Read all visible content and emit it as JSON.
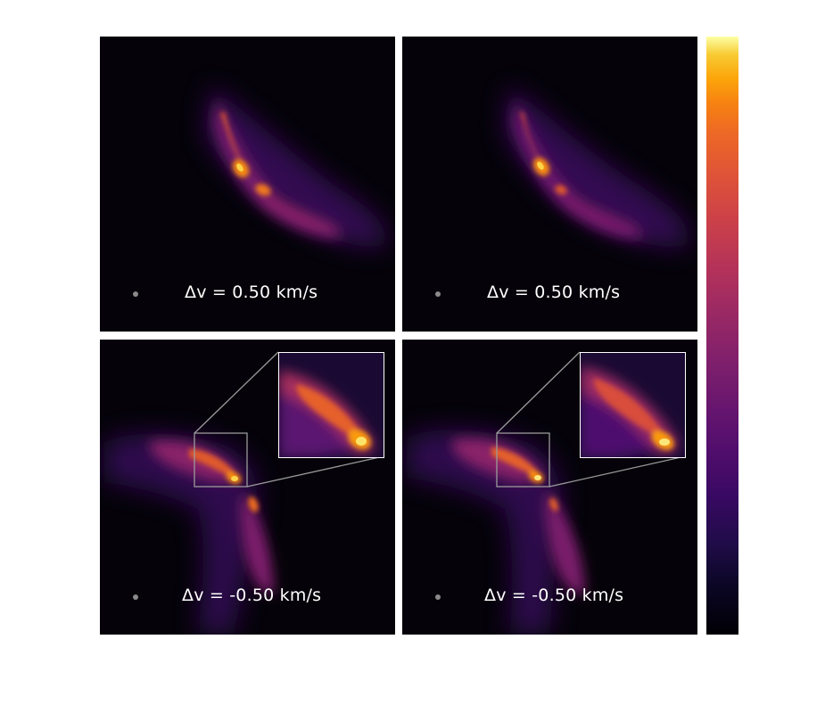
{
  "panels": [
    {
      "label": "Δv = 0.50 km/s"
    },
    {
      "label": "Δv = 0.50 km/s"
    },
    {
      "label": "Δv = -0.50 km/s"
    },
    {
      "label": "Δv = -0.50 km/s"
    }
  ],
  "colormap": "inferno",
  "colors": {
    "background": "#050309",
    "beam": "#8a8a8a",
    "zoom_box": "#9a9a9a",
    "inset_border": "#ffffff"
  }
}
